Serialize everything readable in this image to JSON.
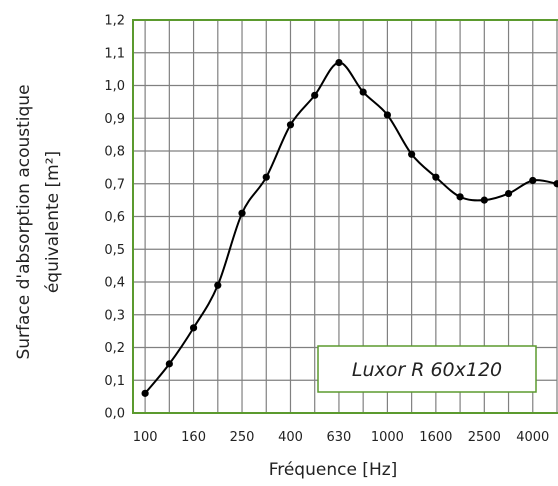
{
  "chart_data": {
    "type": "line",
    "title": "",
    "xlabel": "Fréquence [Hz]",
    "ylabel_line1": "Surface d'absorption acoustique",
    "ylabel_line2": "équivalente [m²]",
    "x_categories": [
      "100",
      "125",
      "160",
      "200",
      "250",
      "315",
      "400",
      "500",
      "630",
      "800",
      "1000",
      "1250",
      "1600",
      "2000",
      "2500",
      "3150",
      "4000",
      "5000"
    ],
    "x_tick_labels": [
      "100",
      "",
      "160",
      "",
      "250",
      "",
      "400",
      "",
      "630",
      "",
      "1000",
      "",
      "1600",
      "",
      "2500",
      "",
      "4000",
      ""
    ],
    "ylim": [
      0,
      1.2
    ],
    "y_ticks": [
      "0,0",
      "0,1",
      "0,2",
      "0,3",
      "0,4",
      "0,5",
      "0,6",
      "0,7",
      "0,8",
      "0,9",
      "1,0",
      "1,1",
      "1,2"
    ],
    "grid": true,
    "series": [
      {
        "name": "Luxor R 60x120",
        "values": [
          0.06,
          0.15,
          0.26,
          0.39,
          0.61,
          0.72,
          0.88,
          0.97,
          1.07,
          0.98,
          0.91,
          0.79,
          0.72,
          0.66,
          0.65,
          0.67,
          0.71,
          0.7
        ],
        "color": "#000000"
      }
    ],
    "legend_position": "bottom-right",
    "plot_border_color": "#5b9a2e",
    "grid_color": "#808080"
  }
}
